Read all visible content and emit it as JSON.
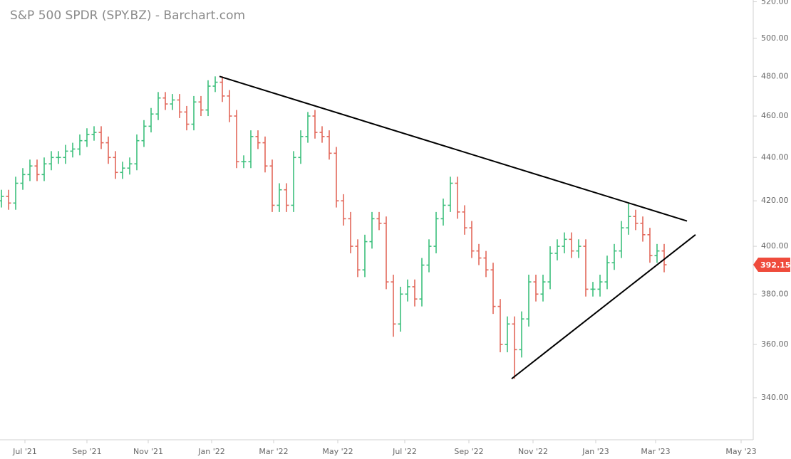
{
  "chart_data": {
    "type": "ohlc",
    "title": "S&P 500 SPDR (SPY.BZ) - Barchart.com",
    "log_scale": true,
    "grid": false,
    "up_color": "#3cbf7c",
    "down_color": "#e2675a",
    "last_color": "#ef4b3c",
    "xlim": [
      -0.2,
      105.5
    ],
    "ylim": [
      325,
      521
    ],
    "xticks": [
      {
        "value": 3.3,
        "label": "Jul '21"
      },
      {
        "value": 12.0,
        "label": "Sep '21"
      },
      {
        "value": 20.6,
        "label": "Nov '21"
      },
      {
        "value": 29.5,
        "label": "Jan '22"
      },
      {
        "value": 38.2,
        "label": "Mar '22"
      },
      {
        "value": 47.2,
        "label": "May '22"
      },
      {
        "value": 56.6,
        "label": "Jul '22"
      },
      {
        "value": 65.6,
        "label": "Sep '22"
      },
      {
        "value": 74.6,
        "label": "Nov '22"
      },
      {
        "value": 83.4,
        "label": "Jan '23"
      },
      {
        "value": 91.8,
        "label": "Mar '23"
      },
      {
        "value": 103.8,
        "label": "May '23"
      }
    ],
    "yticks": [
      {
        "value": 340,
        "label": "340.00"
      },
      {
        "value": 360,
        "label": "360.00"
      },
      {
        "value": 380,
        "label": "380.00"
      },
      {
        "value": 400,
        "label": "400.00"
      },
      {
        "value": 420,
        "label": "420.00"
      },
      {
        "value": 440,
        "label": "440.00"
      },
      {
        "value": 460,
        "label": "460.00"
      },
      {
        "value": 480,
        "label": "480.00"
      },
      {
        "value": 500,
        "label": "500.00"
      },
      {
        "value": 520,
        "label": "520.00"
      }
    ],
    "x": [
      0,
      1,
      2,
      3,
      4,
      5,
      6,
      7,
      8,
      9,
      10,
      11,
      12,
      13,
      14,
      15,
      16,
      17,
      18,
      19,
      20,
      21,
      22,
      23,
      24,
      25,
      26,
      27,
      28,
      29,
      30,
      31,
      32,
      33,
      34,
      35,
      36,
      37,
      38,
      39,
      40,
      41,
      42,
      43,
      44,
      45,
      46,
      47,
      48,
      49,
      50,
      51,
      52,
      53,
      54,
      55,
      56,
      57,
      58,
      59,
      60,
      61,
      62,
      63,
      64,
      65,
      66,
      67,
      68,
      69,
      70,
      71,
      72,
      73,
      74,
      75,
      76,
      77,
      78,
      79,
      80,
      81,
      82,
      83,
      84,
      85,
      86,
      87,
      88,
      89,
      90,
      91,
      92,
      93
    ],
    "open": [
      420,
      422,
      419,
      428,
      432,
      436,
      432,
      437,
      440,
      440,
      443,
      444,
      448,
      451,
      452,
      447,
      440,
      433,
      435,
      437,
      448,
      455,
      461,
      469,
      466,
      468,
      462,
      456,
      467,
      463,
      475,
      477,
      470,
      460,
      438,
      438,
      450,
      447,
      436,
      418,
      425,
      418,
      440,
      450,
      460,
      452,
      450,
      442,
      420,
      412,
      400,
      390,
      402,
      412,
      410,
      385,
      368,
      380,
      383,
      378,
      392,
      400,
      412,
      418,
      428,
      415,
      408,
      398,
      395,
      390,
      375,
      360,
      368,
      358,
      370,
      385,
      380,
      385,
      397,
      400,
      403,
      398,
      400,
      382,
      382,
      385,
      393,
      398,
      408,
      413,
      410,
      405,
      396,
      398
    ],
    "high": [
      425,
      425,
      431,
      435,
      439,
      439,
      440,
      443,
      443,
      446,
      447,
      451,
      454,
      455,
      455,
      450,
      443,
      438,
      440,
      451,
      458,
      464,
      472,
      472,
      471,
      471,
      465,
      470,
      470,
      478,
      480,
      480,
      473,
      463,
      441,
      453,
      453,
      450,
      439,
      428,
      428,
      443,
      453,
      462,
      463,
      455,
      453,
      445,
      423,
      415,
      403,
      405,
      415,
      415,
      413,
      388,
      383,
      386,
      386,
      395,
      403,
      415,
      421,
      431,
      431,
      418,
      411,
      401,
      398,
      393,
      378,
      371,
      371,
      373,
      388,
      388,
      388,
      400,
      403,
      406,
      406,
      403,
      403,
      385,
      388,
      396,
      401,
      411,
      419,
      416,
      413,
      408,
      401,
      401
    ],
    "low": [
      417,
      416,
      416,
      425,
      429,
      429,
      429,
      434,
      437,
      437,
      440,
      441,
      445,
      448,
      444,
      437,
      430,
      430,
      432,
      434,
      445,
      452,
      458,
      463,
      463,
      459,
      453,
      453,
      460,
      460,
      472,
      467,
      457,
      435,
      435,
      435,
      444,
      433,
      415,
      415,
      415,
      415,
      437,
      447,
      449,
      447,
      439,
      417,
      409,
      397,
      387,
      387,
      399,
      407,
      382,
      363,
      365,
      377,
      375,
      375,
      389,
      397,
      409,
      415,
      412,
      405,
      395,
      392,
      387,
      372,
      357,
      357,
      347,
      355,
      367,
      377,
      377,
      382,
      394,
      397,
      395,
      395,
      379,
      379,
      379,
      382,
      390,
      395,
      405,
      407,
      402,
      393,
      393,
      389
    ],
    "close": [
      422,
      419,
      428,
      432,
      436,
      432,
      437,
      440,
      440,
      443,
      444,
      448,
      451,
      452,
      447,
      440,
      433,
      435,
      437,
      448,
      455,
      461,
      469,
      466,
      468,
      462,
      456,
      467,
      463,
      475,
      477,
      470,
      460,
      438,
      438,
      450,
      447,
      436,
      418,
      425,
      418,
      440,
      450,
      460,
      452,
      450,
      442,
      420,
      412,
      400,
      390,
      402,
      412,
      410,
      385,
      368,
      380,
      383,
      378,
      392,
      400,
      412,
      418,
      428,
      415,
      408,
      398,
      395,
      390,
      375,
      360,
      368,
      358,
      370,
      385,
      380,
      385,
      397,
      400,
      403,
      398,
      400,
      382,
      382,
      385,
      393,
      398,
      408,
      413,
      410,
      405,
      396,
      398,
      392.15
    ],
    "trendlines": [
      {
        "x": [
          30.6,
          96.2
        ],
        "y": [
          480,
          411
        ],
        "color": "#000000"
      },
      {
        "x": [
          71.6,
          97.4
        ],
        "y": [
          347,
          405
        ],
        "color": "#000000"
      }
    ]
  }
}
